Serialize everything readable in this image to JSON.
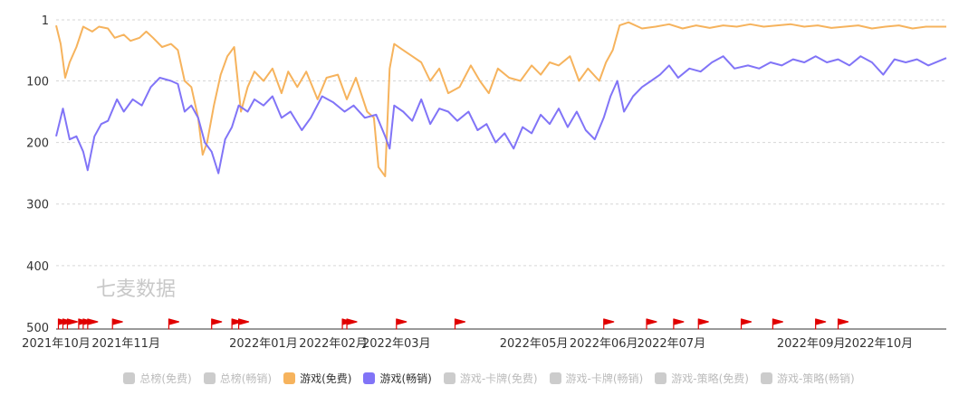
{
  "watermark": "七麦数据",
  "chart_data": {
    "type": "line",
    "y_inverted": true,
    "ylim": [
      1,
      500
    ],
    "y_ticks": [
      1,
      100,
      200,
      300,
      400,
      500
    ],
    "x_range": [
      "2021-10-01",
      "2022-10-31"
    ],
    "x_ticks": [
      {
        "date": "2021-10-01",
        "label": "2021年10月"
      },
      {
        "date": "2021-11-01",
        "label": "2021年11月"
      },
      {
        "date": "2022-01-01",
        "label": "2022年01月"
      },
      {
        "date": "2022-02-01",
        "label": "2022年02月"
      },
      {
        "date": "2022-03-01",
        "label": "2022年03月"
      },
      {
        "date": "2022-05-01",
        "label": "2022年05月"
      },
      {
        "date": "2022-06-01",
        "label": "2022年06月"
      },
      {
        "date": "2022-07-01",
        "label": "2022年07月"
      },
      {
        "date": "2022-09-01",
        "label": "2022年09月"
      },
      {
        "date": "2022-10-01",
        "label": "2022年10月"
      }
    ],
    "grid": true,
    "legend_position": "bottom",
    "series": [
      {
        "name": "游戏(免费)",
        "color": "#f6b35d",
        "points": [
          [
            "2021-10-01",
            10
          ],
          [
            "2021-10-03",
            40
          ],
          [
            "2021-10-05",
            95
          ],
          [
            "2021-10-07",
            70
          ],
          [
            "2021-10-10",
            45
          ],
          [
            "2021-10-13",
            12
          ],
          [
            "2021-10-17",
            20
          ],
          [
            "2021-10-20",
            12
          ],
          [
            "2021-10-24",
            15
          ],
          [
            "2021-10-27",
            30
          ],
          [
            "2021-10-31",
            25
          ],
          [
            "2021-11-03",
            35
          ],
          [
            "2021-11-07",
            30
          ],
          [
            "2021-11-10",
            20
          ],
          [
            "2021-11-13",
            30
          ],
          [
            "2021-11-17",
            45
          ],
          [
            "2021-11-21",
            40
          ],
          [
            "2021-11-24",
            50
          ],
          [
            "2021-11-27",
            100
          ],
          [
            "2021-11-30",
            110
          ],
          [
            "2021-12-03",
            160
          ],
          [
            "2021-12-05",
            220
          ],
          [
            "2021-12-07",
            200
          ],
          [
            "2021-12-10",
            140
          ],
          [
            "2021-12-13",
            90
          ],
          [
            "2021-12-16",
            60
          ],
          [
            "2021-12-19",
            45
          ],
          [
            "2021-12-22",
            150
          ],
          [
            "2021-12-25",
            110
          ],
          [
            "2021-12-28",
            85
          ],
          [
            "2022-01-01",
            100
          ],
          [
            "2022-01-05",
            80
          ],
          [
            "2022-01-09",
            120
          ],
          [
            "2022-01-12",
            85
          ],
          [
            "2022-01-16",
            110
          ],
          [
            "2022-01-20",
            85
          ],
          [
            "2022-01-25",
            130
          ],
          [
            "2022-01-29",
            95
          ],
          [
            "2022-02-03",
            90
          ],
          [
            "2022-02-07",
            130
          ],
          [
            "2022-02-11",
            95
          ],
          [
            "2022-02-16",
            150
          ],
          [
            "2022-02-19",
            160
          ],
          [
            "2022-02-21",
            240
          ],
          [
            "2022-02-24",
            255
          ],
          [
            "2022-02-26",
            80
          ],
          [
            "2022-02-28",
            40
          ],
          [
            "2022-03-04",
            50
          ],
          [
            "2022-03-08",
            60
          ],
          [
            "2022-03-12",
            70
          ],
          [
            "2022-03-16",
            100
          ],
          [
            "2022-03-20",
            80
          ],
          [
            "2022-03-24",
            120
          ],
          [
            "2022-03-29",
            110
          ],
          [
            "2022-04-03",
            75
          ],
          [
            "2022-04-07",
            100
          ],
          [
            "2022-04-11",
            120
          ],
          [
            "2022-04-15",
            80
          ],
          [
            "2022-04-20",
            95
          ],
          [
            "2022-04-25",
            100
          ],
          [
            "2022-04-30",
            75
          ],
          [
            "2022-05-04",
            90
          ],
          [
            "2022-05-08",
            70
          ],
          [
            "2022-05-12",
            75
          ],
          [
            "2022-05-17",
            60
          ],
          [
            "2022-05-21",
            100
          ],
          [
            "2022-05-25",
            80
          ],
          [
            "2022-05-30",
            100
          ],
          [
            "2022-06-02",
            70
          ],
          [
            "2022-06-05",
            50
          ],
          [
            "2022-06-08",
            10
          ],
          [
            "2022-06-12",
            5
          ],
          [
            "2022-06-18",
            15
          ],
          [
            "2022-06-24",
            12
          ],
          [
            "2022-06-30",
            8
          ],
          [
            "2022-07-06",
            15
          ],
          [
            "2022-07-12",
            10
          ],
          [
            "2022-07-18",
            14
          ],
          [
            "2022-07-24",
            10
          ],
          [
            "2022-07-30",
            12
          ],
          [
            "2022-08-05",
            8
          ],
          [
            "2022-08-11",
            12
          ],
          [
            "2022-08-17",
            10
          ],
          [
            "2022-08-23",
            8
          ],
          [
            "2022-08-29",
            12
          ],
          [
            "2022-09-04",
            10
          ],
          [
            "2022-09-10",
            14
          ],
          [
            "2022-09-16",
            12
          ],
          [
            "2022-09-22",
            10
          ],
          [
            "2022-09-28",
            15
          ],
          [
            "2022-10-04",
            12
          ],
          [
            "2022-10-10",
            10
          ],
          [
            "2022-10-16",
            15
          ],
          [
            "2022-10-22",
            12
          ],
          [
            "2022-10-31",
            12
          ]
        ]
      },
      {
        "name": "游戏(畅销)",
        "color": "#8174f7",
        "points": [
          [
            "2021-10-01",
            190
          ],
          [
            "2021-10-04",
            145
          ],
          [
            "2021-10-07",
            195
          ],
          [
            "2021-10-10",
            190
          ],
          [
            "2021-10-13",
            215
          ],
          [
            "2021-10-15",
            245
          ],
          [
            "2021-10-18",
            190
          ],
          [
            "2021-10-21",
            170
          ],
          [
            "2021-10-24",
            165
          ],
          [
            "2021-10-28",
            130
          ],
          [
            "2021-10-31",
            150
          ],
          [
            "2021-11-04",
            130
          ],
          [
            "2021-11-08",
            140
          ],
          [
            "2021-11-12",
            110
          ],
          [
            "2021-11-16",
            95
          ],
          [
            "2021-11-21",
            100
          ],
          [
            "2021-11-24",
            105
          ],
          [
            "2021-11-27",
            150
          ],
          [
            "2021-11-30",
            140
          ],
          [
            "2021-12-03",
            160
          ],
          [
            "2021-12-06",
            200
          ],
          [
            "2021-12-09",
            215
          ],
          [
            "2021-12-12",
            250
          ],
          [
            "2021-12-15",
            195
          ],
          [
            "2021-12-18",
            175
          ],
          [
            "2021-12-21",
            140
          ],
          [
            "2021-12-25",
            150
          ],
          [
            "2021-12-28",
            130
          ],
          [
            "2022-01-01",
            140
          ],
          [
            "2022-01-05",
            125
          ],
          [
            "2022-01-09",
            160
          ],
          [
            "2022-01-13",
            150
          ],
          [
            "2022-01-18",
            180
          ],
          [
            "2022-01-22",
            160
          ],
          [
            "2022-01-27",
            125
          ],
          [
            "2022-02-01",
            135
          ],
          [
            "2022-02-06",
            150
          ],
          [
            "2022-02-10",
            140
          ],
          [
            "2022-02-15",
            160
          ],
          [
            "2022-02-20",
            155
          ],
          [
            "2022-02-24",
            190
          ],
          [
            "2022-02-26",
            210
          ],
          [
            "2022-02-28",
            140
          ],
          [
            "2022-03-04",
            150
          ],
          [
            "2022-03-08",
            165
          ],
          [
            "2022-03-12",
            130
          ],
          [
            "2022-03-16",
            170
          ],
          [
            "2022-03-20",
            145
          ],
          [
            "2022-03-24",
            150
          ],
          [
            "2022-03-28",
            165
          ],
          [
            "2022-04-02",
            150
          ],
          [
            "2022-04-06",
            180
          ],
          [
            "2022-04-10",
            170
          ],
          [
            "2022-04-14",
            200
          ],
          [
            "2022-04-18",
            185
          ],
          [
            "2022-04-22",
            210
          ],
          [
            "2022-04-26",
            175
          ],
          [
            "2022-04-30",
            185
          ],
          [
            "2022-05-04",
            155
          ],
          [
            "2022-05-08",
            170
          ],
          [
            "2022-05-12",
            145
          ],
          [
            "2022-05-16",
            175
          ],
          [
            "2022-05-20",
            150
          ],
          [
            "2022-05-24",
            180
          ],
          [
            "2022-05-28",
            195
          ],
          [
            "2022-06-01",
            160
          ],
          [
            "2022-06-04",
            125
          ],
          [
            "2022-06-07",
            100
          ],
          [
            "2022-06-10",
            150
          ],
          [
            "2022-06-14",
            125
          ],
          [
            "2022-06-18",
            110
          ],
          [
            "2022-06-22",
            100
          ],
          [
            "2022-06-26",
            90
          ],
          [
            "2022-06-30",
            75
          ],
          [
            "2022-07-04",
            95
          ],
          [
            "2022-07-09",
            80
          ],
          [
            "2022-07-14",
            85
          ],
          [
            "2022-07-19",
            70
          ],
          [
            "2022-07-24",
            60
          ],
          [
            "2022-07-29",
            80
          ],
          [
            "2022-08-04",
            75
          ],
          [
            "2022-08-09",
            80
          ],
          [
            "2022-08-14",
            70
          ],
          [
            "2022-08-19",
            75
          ],
          [
            "2022-08-24",
            65
          ],
          [
            "2022-08-29",
            70
          ],
          [
            "2022-09-03",
            60
          ],
          [
            "2022-09-08",
            70
          ],
          [
            "2022-09-13",
            65
          ],
          [
            "2022-09-18",
            75
          ],
          [
            "2022-09-23",
            60
          ],
          [
            "2022-09-28",
            70
          ],
          [
            "2022-10-03",
            90
          ],
          [
            "2022-10-08",
            65
          ],
          [
            "2022-10-13",
            70
          ],
          [
            "2022-10-18",
            65
          ],
          [
            "2022-10-23",
            75
          ],
          [
            "2022-10-31",
            63
          ]
        ]
      }
    ],
    "event_flag_color": "#e00000",
    "event_flags": [
      "2021-10-02",
      "2021-10-04",
      "2021-10-06",
      "2021-10-11",
      "2021-10-13",
      "2021-10-15",
      "2021-10-26",
      "2021-11-20",
      "2021-12-09",
      "2021-12-18",
      "2021-12-21",
      "2022-02-05",
      "2022-02-07",
      "2022-03-01",
      "2022-03-27",
      "2022-06-01",
      "2022-06-20",
      "2022-07-02",
      "2022-07-13",
      "2022-08-01",
      "2022-08-15",
      "2022-09-03",
      "2022-09-13"
    ]
  },
  "legend": [
    {
      "label": "总榜(免费)",
      "color": "#cccccc",
      "active": false
    },
    {
      "label": "总榜(畅销)",
      "color": "#cccccc",
      "active": false
    },
    {
      "label": "游戏(免费)",
      "color": "#f6b35d",
      "active": true
    },
    {
      "label": "游戏(畅销)",
      "color": "#8174f7",
      "active": true
    },
    {
      "label": "游戏-卡牌(免费)",
      "color": "#cccccc",
      "active": false
    },
    {
      "label": "游戏-卡牌(畅销)",
      "color": "#cccccc",
      "active": false
    },
    {
      "label": "游戏-策略(免费)",
      "color": "#cccccc",
      "active": false
    },
    {
      "label": "游戏-策略(畅销)",
      "color": "#cccccc",
      "active": false
    }
  ]
}
